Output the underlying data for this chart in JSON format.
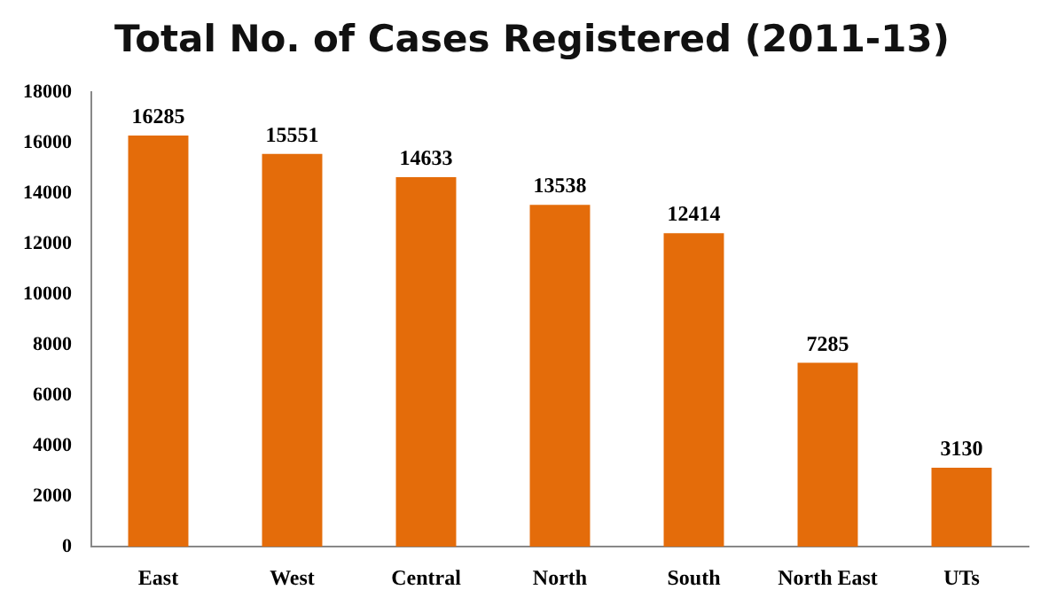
{
  "chart_data": {
    "type": "bar",
    "title": "Total No. of Cases Registered (2011-13)",
    "categories": [
      "East",
      "West",
      "Central",
      "North",
      "South",
      "North East",
      "UTs"
    ],
    "values": [
      16285,
      15551,
      14633,
      13538,
      12414,
      7285,
      3130
    ],
    "color": "#e46c0a",
    "ylim": [
      0,
      18000
    ],
    "yticks": [
      0,
      2000,
      4000,
      6000,
      8000,
      10000,
      12000,
      14000,
      16000,
      18000
    ],
    "grid": false,
    "legend": false,
    "data_labels": true
  }
}
